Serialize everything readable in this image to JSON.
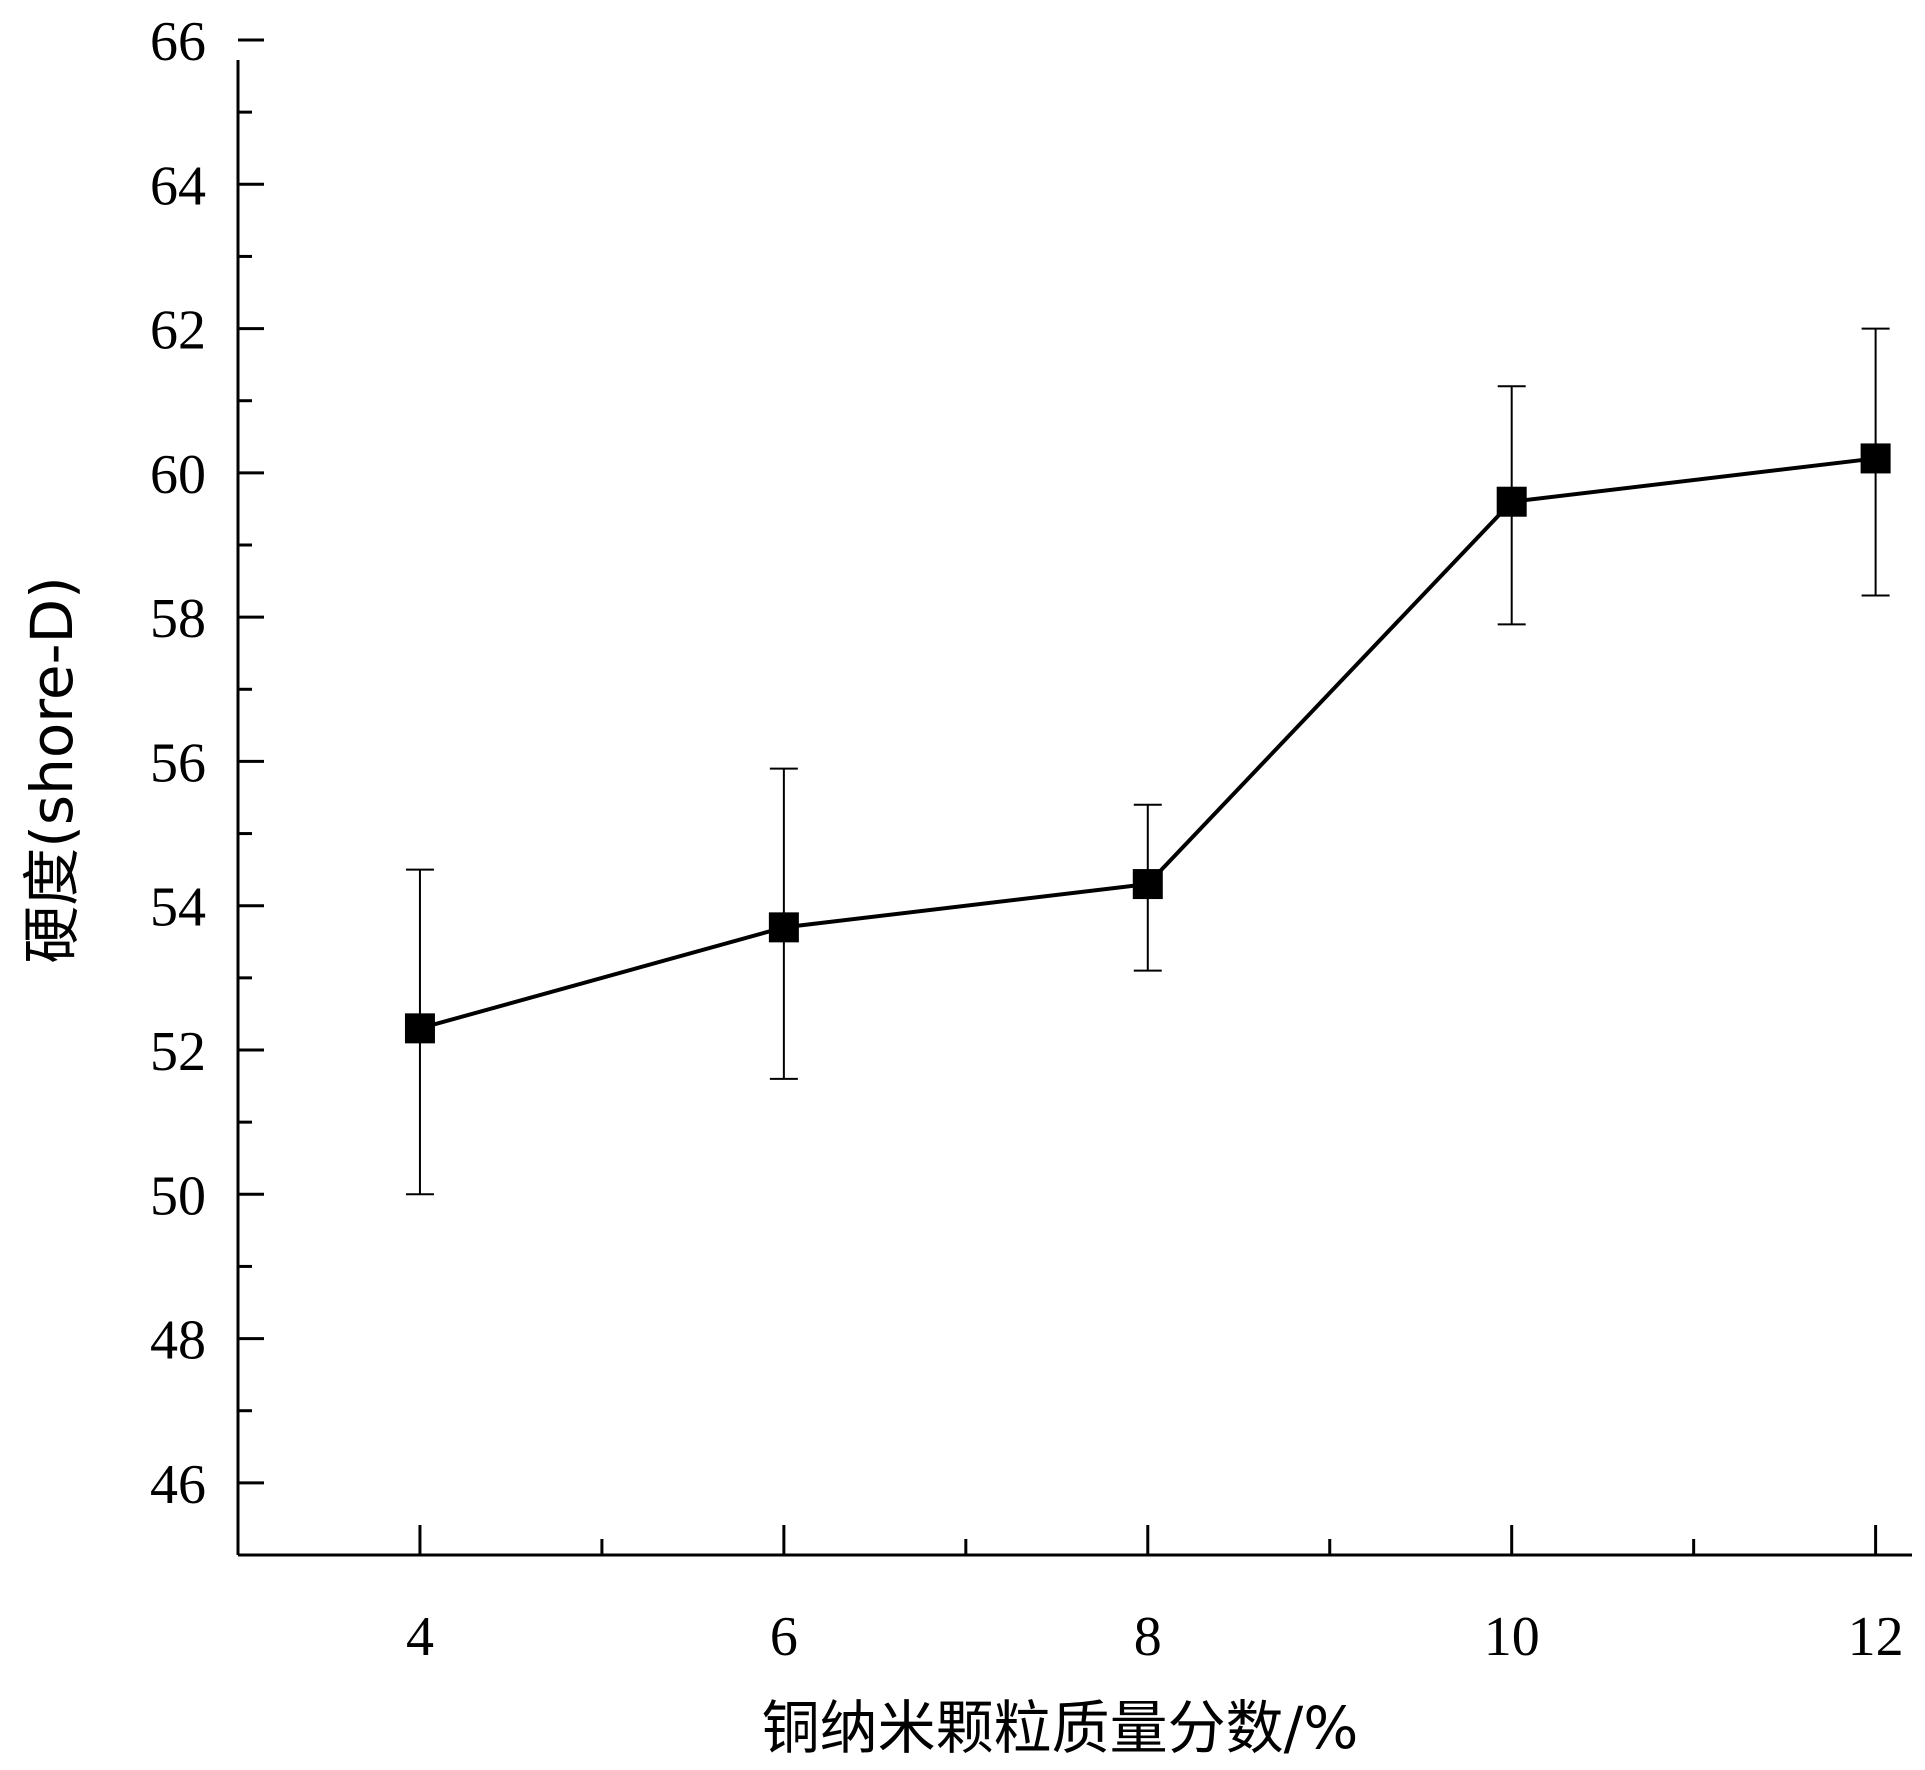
{
  "chart_data": {
    "type": "line",
    "xlabel": "铜纳米颗粒质量分数/%",
    "ylabel": "硬度(shore-D)",
    "xlim": [
      3,
      12.2
    ],
    "ylim": [
      45,
      66
    ],
    "x_ticks": [
      4,
      6,
      8,
      10,
      12
    ],
    "y_ticks": [
      46,
      48,
      50,
      52,
      54,
      56,
      58,
      60,
      62,
      64,
      66
    ],
    "grid": false,
    "series": [
      {
        "x": [
          4,
          6,
          8,
          10,
          12
        ],
        "y": [
          52.3,
          53.7,
          54.3,
          59.6,
          60.2
        ],
        "error_upper": [
          54.5,
          55.9,
          55.4,
          61.2,
          62.0
        ],
        "error_lower": [
          50.0,
          51.6,
          53.1,
          57.9,
          58.3
        ],
        "marker": "square",
        "color": "#000000"
      }
    ]
  }
}
